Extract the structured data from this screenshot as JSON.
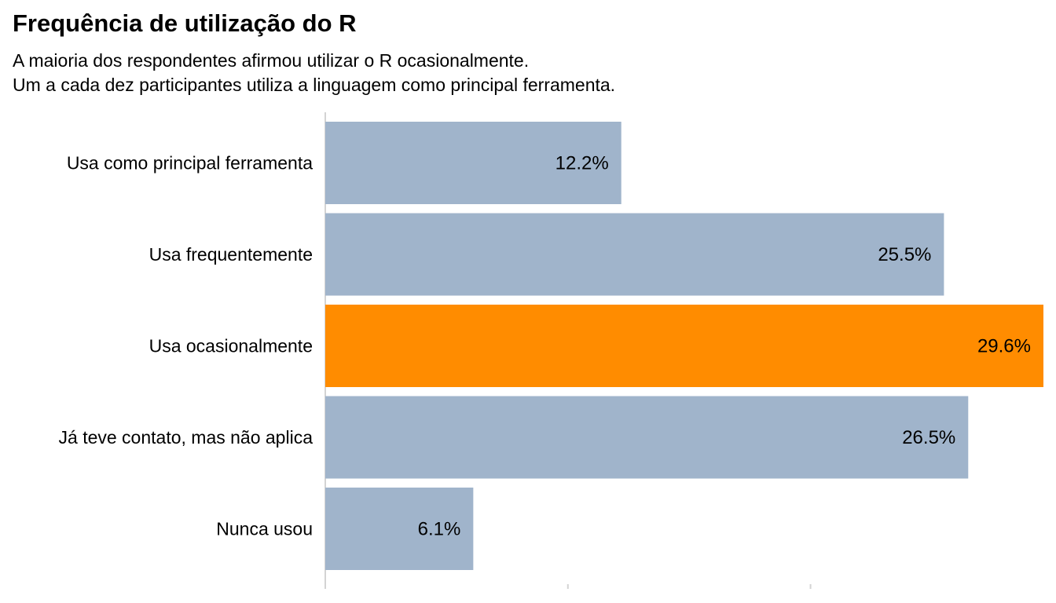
{
  "title": "Frequência de utilização do R",
  "subtitle_lines": [
    "A maioria dos respondentes afirmou utilizar o R ocasionalmente.",
    "Um a cada dez participantes utiliza a linguagem como principal ferramenta."
  ],
  "colors": {
    "default_bar": "#a0b4cb",
    "highlight_bar": "#ff8c00",
    "axis_line": "#d4d4d4"
  },
  "chart_data": {
    "type": "bar",
    "orientation": "horizontal",
    "title": "Frequência de utilização do R",
    "categories": [
      "Usa como principal ferramenta",
      "Usa frequentemente",
      "Usa ocasionalmente",
      "Já teve contato, mas não aplica",
      "Nunca usou"
    ],
    "values": [
      12.2,
      25.5,
      29.6,
      26.5,
      6.1
    ],
    "value_labels": [
      "12.2%",
      "25.5%",
      "29.6%",
      "26.5%",
      "6.1%"
    ],
    "highlight_index": 2,
    "xlim": [
      0,
      29.6
    ],
    "x_ticks": [
      0,
      10,
      20
    ],
    "grid": false,
    "legend": false,
    "xlabel": "",
    "ylabel": ""
  }
}
